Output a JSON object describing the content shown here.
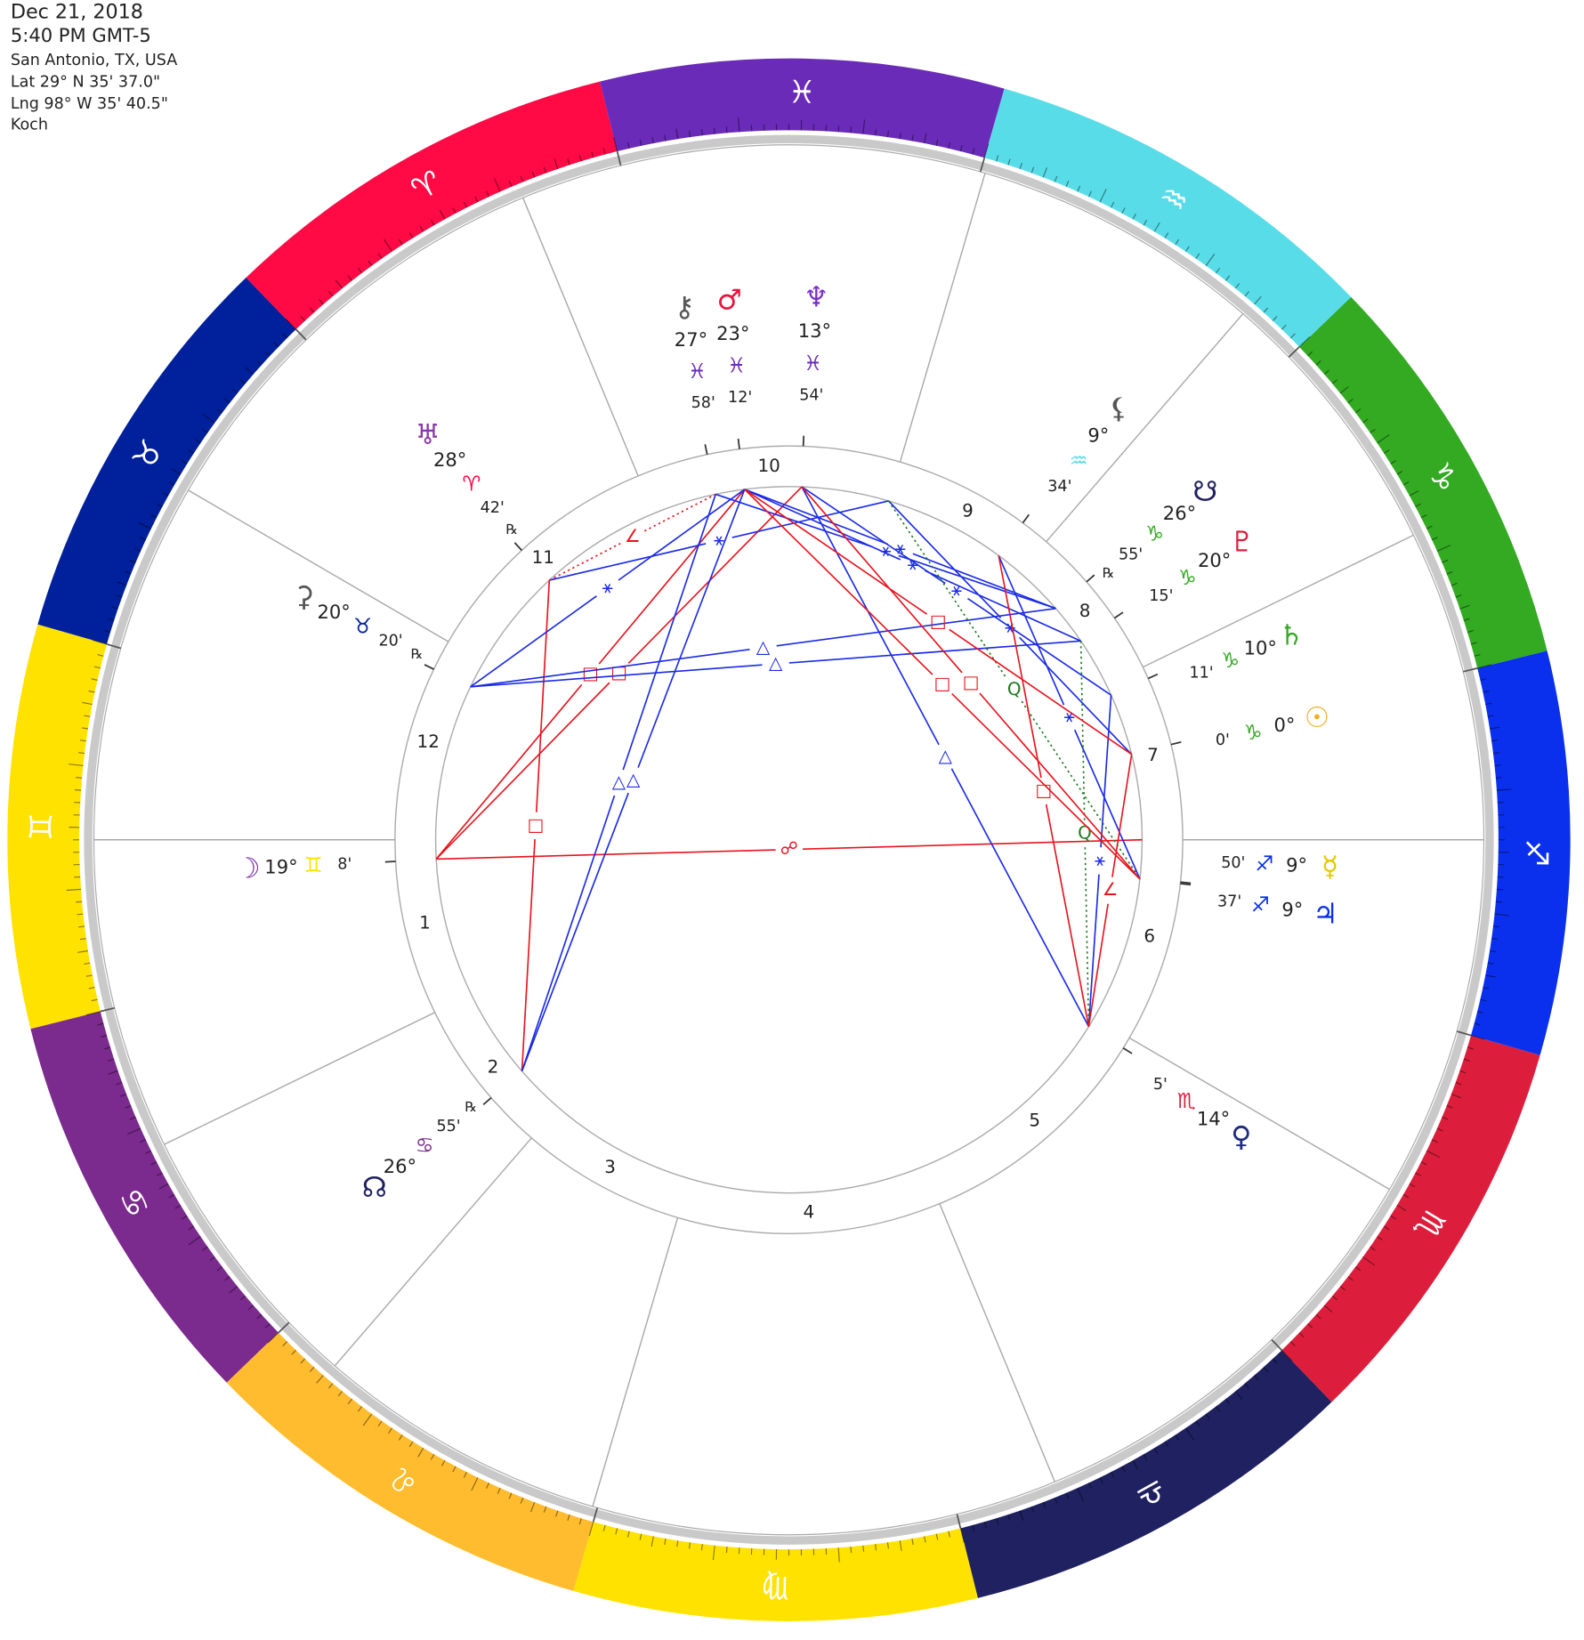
{
  "header": {
    "date": "Dec 21, 2018",
    "time": "5:40 PM GMT-5",
    "place": "San Antonio, TX, USA",
    "lat": "Lat 29° N 35' 37.0\"",
    "lng": "Lng 98° W 35' 40.5\"",
    "system": "Koch"
  },
  "zodiac": [
    {
      "glyph": "♈︎",
      "color": "#ff0a44"
    },
    {
      "glyph": "♉︎",
      "color": "#00209c"
    },
    {
      "glyph": "♊︎",
      "color": "#ffe200"
    },
    {
      "glyph": "♋︎",
      "color": "#7b2a8e"
    },
    {
      "glyph": "♌︎",
      "color": "#ffbc2e"
    },
    {
      "glyph": "♍︎",
      "color": "#ffe200"
    },
    {
      "glyph": "♎︎",
      "color": "#1f2160"
    },
    {
      "glyph": "♏︎",
      "color": "#dc1e3c"
    },
    {
      "glyph": "♐︎",
      "color": "#0a30ee"
    },
    {
      "glyph": "♑︎",
      "color": "#33aa22"
    },
    {
      "glyph": "♒︎",
      "color": "#58dde8"
    },
    {
      "glyph": "♓︎",
      "color": "#6a2bb8"
    }
  ],
  "houses": [
    "1",
    "2",
    "3",
    "4",
    "5",
    "6",
    "7",
    "8",
    "9",
    "10",
    "11",
    "12"
  ],
  "planets": [
    {
      "glyph": "⚷",
      "color": "#555555",
      "degree": "27°",
      "sign": "♓︎",
      "minute": "58'"
    },
    {
      "glyph": "♂︎",
      "color": "#e8143c",
      "degree": "23°",
      "sign": "♓︎",
      "minute": "12'"
    },
    {
      "glyph": "♆",
      "color": "#7a30c8",
      "degree": "13°",
      "sign": "♓︎",
      "minute": "54'"
    },
    {
      "glyph": "♅",
      "color": "#8a3aa8",
      "degree": "28°",
      "sign": "♈︎",
      "minute": "42'",
      "retrograde": "℞"
    },
    {
      "glyph": "⚳",
      "color": "#555555",
      "degree": "20°",
      "sign": "♉︎",
      "minute": "20'",
      "retrograde": "℞"
    },
    {
      "glyph": "☽",
      "color": "#7a30b0",
      "degree": "19°",
      "sign": "♊︎",
      "minute": "8'"
    },
    {
      "glyph": "☊",
      "color": "#1f2160",
      "degree": "26°",
      "sign": "♋︎",
      "minute": "55'",
      "retrograde": "℞"
    },
    {
      "glyph": "♀︎",
      "color": "#1e2a80",
      "degree": "14°",
      "sign": "♏︎",
      "minute": "5'"
    },
    {
      "glyph": "♃",
      "color": "#0a30ee",
      "degree": "9°",
      "sign": "♐︎",
      "minute": "37'"
    },
    {
      "glyph": "☿",
      "color": "#e8c800",
      "degree": "9°",
      "sign": "♐︎",
      "minute": "50'"
    },
    {
      "glyph": "☉",
      "color": "#f0b020",
      "degree": "0°",
      "sign": "♑︎",
      "minute": "0'"
    },
    {
      "glyph": "♄",
      "color": "#33aa22",
      "degree": "10°",
      "sign": "♑︎",
      "minute": "11'"
    },
    {
      "glyph": "♇",
      "color": "#dc1e3c",
      "degree": "20°",
      "sign": "♑︎",
      "minute": "15'"
    },
    {
      "glyph": "☋",
      "color": "#1f2160",
      "degree": "26°",
      "sign": "♑︎",
      "minute": "55'",
      "retrograde": "℞"
    },
    {
      "glyph": "⚸",
      "color": "#555555",
      "degree": "9°",
      "sign": "♒︎",
      "minute": "34'"
    }
  ],
  "aspects": [
    {
      "symbol": "☍",
      "color": "#e8141e"
    },
    {
      "symbol": "□",
      "color": "#e8141e"
    },
    {
      "symbol": "□",
      "color": "#e8141e"
    },
    {
      "symbol": "□",
      "color": "#e8141e"
    },
    {
      "symbol": "△",
      "color": "#1a2ae8"
    },
    {
      "symbol": "△",
      "color": "#1a2ae8"
    },
    {
      "symbol": "△",
      "color": "#1a2ae8"
    },
    {
      "symbol": "△",
      "color": "#1a2ae8"
    },
    {
      "symbol": "△",
      "color": "#1a2ae8"
    },
    {
      "symbol": "⚹",
      "color": "#1a2ae8"
    },
    {
      "symbol": "⚹",
      "color": "#1a2ae8"
    },
    {
      "symbol": "⚹",
      "color": "#1a2ae8"
    },
    {
      "symbol": "⚹",
      "color": "#1a2ae8"
    },
    {
      "symbol": "⚹",
      "color": "#1a2ae8"
    },
    {
      "symbol": "⚹",
      "color": "#1a2ae8"
    },
    {
      "symbol": "⚹",
      "color": "#1a2ae8"
    },
    {
      "symbol": "⚹",
      "color": "#1a2ae8"
    },
    {
      "symbol": "⚹",
      "color": "#1a2ae8"
    },
    {
      "symbol": "Q",
      "color": "#1f7a1f",
      "dashed": true
    },
    {
      "symbol": "Q",
      "color": "#1f7a1f",
      "dashed": true
    },
    {
      "symbol": "□",
      "color": "#e8141e"
    },
    {
      "symbol": "□",
      "color": "#e8141e"
    },
    {
      "symbol": "□",
      "color": "#e8141e"
    },
    {
      "symbol": "□",
      "color": "#e8141e"
    },
    {
      "symbol": "∠",
      "color": "#e8141e"
    },
    {
      "symbol": "∠",
      "color": "#e8141e",
      "dashed": true
    }
  ]
}
